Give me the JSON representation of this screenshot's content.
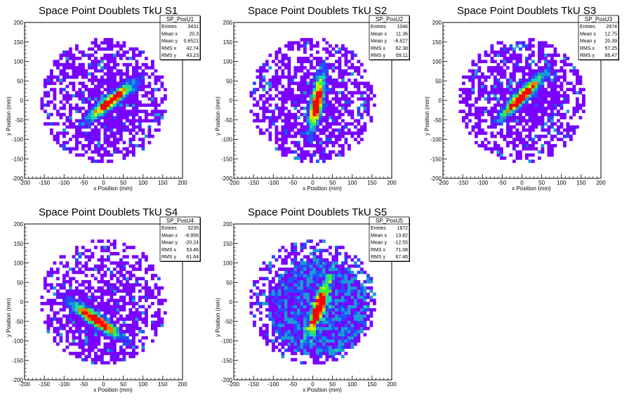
{
  "chart_data": [
    {
      "type": "heatmap",
      "title": "Space Point Doublets TkU S1",
      "xlabel": "x Position (mm)",
      "ylabel": "y Position (mm)",
      "xlim": [
        -200,
        200
      ],
      "ylim": [
        -200,
        200
      ],
      "xticks": [
        -200,
        -150,
        -100,
        -50,
        0,
        50,
        100,
        150,
        200
      ],
      "yticks": [
        -200,
        -150,
        -100,
        -50,
        0,
        50,
        100,
        150,
        200
      ],
      "stats": {
        "name": "SP_PosU1",
        "rows": [
          {
            "label": "Entries",
            "value": "3431"
          },
          {
            "label": "Mean x",
            "value": "20.3"
          },
          {
            "label": "Mean y",
            "value": "0.6521"
          },
          {
            "label": "RMS x",
            "value": "42.74"
          },
          {
            "label": "RMS y",
            "value": "43.23"
          }
        ]
      },
      "hotspot": {
        "angle_deg": 38,
        "center": [
          20,
          0
        ]
      }
    },
    {
      "type": "heatmap",
      "title": "Space Point Doublets TkU S2",
      "xlabel": "x Position (mm)",
      "ylabel": "y Position (mm)",
      "xlim": [
        -200,
        200
      ],
      "ylim": [
        -200,
        200
      ],
      "xticks": [
        -200,
        -150,
        -100,
        -50,
        0,
        50,
        100,
        150,
        200
      ],
      "yticks": [
        -200,
        -150,
        -100,
        -50,
        0,
        50,
        100,
        150,
        200
      ],
      "stats": {
        "name": "SP_PosU2",
        "rows": [
          {
            "label": "Entries",
            "value": "1046"
          },
          {
            "label": "Mean x",
            "value": "11.36"
          },
          {
            "label": "Mean y",
            "value": "-8.827"
          },
          {
            "label": "RMS x",
            "value": "62.38"
          },
          {
            "label": "RMS y",
            "value": "69.11"
          }
        ]
      },
      "hotspot": {
        "angle_deg": 80,
        "center": [
          10,
          -5
        ]
      }
    },
    {
      "type": "heatmap",
      "title": "Space Point Doublets TkU S3",
      "xlabel": "x Position (mm)",
      "ylabel": "y Position (mm)",
      "xlim": [
        -200,
        200
      ],
      "ylim": [
        -200,
        200
      ],
      "xticks": [
        -200,
        -150,
        -100,
        -50,
        0,
        50,
        100,
        150,
        200
      ],
      "yticks": [
        -200,
        -150,
        -100,
        -50,
        0,
        50,
        100,
        150,
        200
      ],
      "stats": {
        "name": "SP_PosU3",
        "rows": [
          {
            "label": "Entries",
            "value": "2674"
          },
          {
            "label": "Mean x",
            "value": "12.75"
          },
          {
            "label": "Mean y",
            "value": "20.39"
          },
          {
            "label": "RMS x",
            "value": "57.25"
          },
          {
            "label": "RMS y",
            "value": "66.47"
          }
        ]
      },
      "hotspot": {
        "angle_deg": 45,
        "center": [
          0,
          10
        ]
      }
    },
    {
      "type": "heatmap",
      "title": "Space Point Doublets TkU S4",
      "xlabel": "x Position (mm)",
      "ylabel": "y Position (mm)",
      "xlim": [
        -200,
        200
      ],
      "ylim": [
        -200,
        200
      ],
      "xticks": [
        -200,
        -150,
        -100,
        -50,
        0,
        50,
        100,
        150,
        200
      ],
      "yticks": [
        -200,
        -150,
        -100,
        -50,
        0,
        50,
        100,
        150,
        200
      ],
      "stats": {
        "name": "SP_PosU4",
        "rows": [
          {
            "label": "Entries",
            "value": "3235"
          },
          {
            "label": "Mean x",
            "value": "-6.956"
          },
          {
            "label": "Mean y",
            "value": "-20.24"
          },
          {
            "label": "RMS x",
            "value": "53.46"
          },
          {
            "label": "RMS y",
            "value": "61.64"
          }
        ]
      },
      "hotspot": {
        "angle_deg": -35,
        "center": [
          -20,
          -45
        ]
      }
    },
    {
      "type": "heatmap",
      "title": "Space Point Doublets TkU S5",
      "xlabel": "x Position (mm)",
      "ylabel": "y Position (mm)",
      "xlim": [
        -200,
        200
      ],
      "ylim": [
        -200,
        200
      ],
      "xticks": [
        -200,
        -150,
        -100,
        -50,
        0,
        50,
        100,
        150,
        200
      ],
      "yticks": [
        -200,
        -150,
        -100,
        -50,
        0,
        50,
        100,
        150,
        200
      ],
      "stats": {
        "name": "SP_PosU5",
        "rows": [
          {
            "label": "Entries",
            "value": "1872"
          },
          {
            "label": "Mean x",
            "value": "13.82"
          },
          {
            "label": "Mean y",
            "value": "-12.55"
          },
          {
            "label": "RMS x",
            "value": "71.08"
          },
          {
            "label": "RMS y",
            "value": "67.46"
          }
        ]
      },
      "hotspot": {
        "angle_deg": 70,
        "center": [
          15,
          -15
        ]
      }
    }
  ],
  "palette": [
    "#7a00ff",
    "#5520ff",
    "#2050ff",
    "#1a9ad6",
    "#19d8b0",
    "#3cf03c",
    "#c8f000",
    "#ff7800",
    "#ff0000"
  ]
}
